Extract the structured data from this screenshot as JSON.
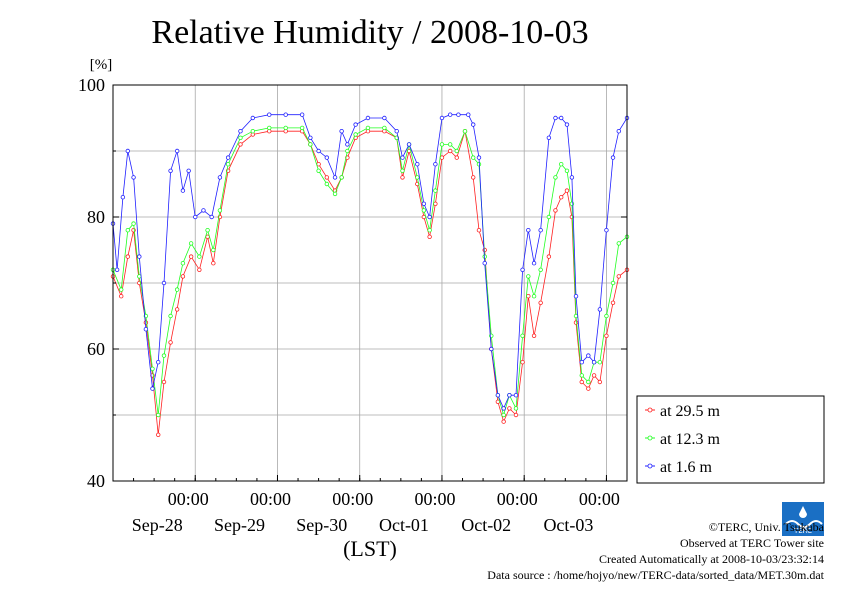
{
  "chart_data": {
    "type": "line",
    "title": "Relative Humidity / 2008-10-03",
    "ylabel": "[%]",
    "xlabel": "(LST)",
    "ylim": [
      40,
      100
    ],
    "yticks": [
      40,
      60,
      80,
      100
    ],
    "xlim": [
      0,
      6.25
    ],
    "xtick_time_label": "00:00",
    "xticks": [
      {
        "pos": 1,
        "label": "Sep-28"
      },
      {
        "pos": 2,
        "label": "Sep-29"
      },
      {
        "pos": 3,
        "label": "Sep-30"
      },
      {
        "pos": 4,
        "label": "Oct-01"
      },
      {
        "pos": 5,
        "label": "Oct-02"
      },
      {
        "pos": 6,
        "label": "Oct-03"
      }
    ],
    "grid": true,
    "legend_position": "bottom-right",
    "series": [
      {
        "name": "at 29.5 m",
        "color": "#ff2020",
        "points": [
          [
            0.0,
            71
          ],
          [
            0.1,
            68
          ],
          [
            0.18,
            74
          ],
          [
            0.25,
            78
          ],
          [
            0.32,
            70
          ],
          [
            0.4,
            64
          ],
          [
            0.48,
            56
          ],
          [
            0.55,
            47
          ],
          [
            0.62,
            55
          ],
          [
            0.7,
            61
          ],
          [
            0.78,
            66
          ],
          [
            0.85,
            71
          ],
          [
            0.95,
            74
          ],
          [
            1.05,
            72
          ],
          [
            1.15,
            77
          ],
          [
            1.22,
            73
          ],
          [
            1.3,
            80
          ],
          [
            1.4,
            87
          ],
          [
            1.55,
            91
          ],
          [
            1.7,
            92.5
          ],
          [
            1.9,
            93
          ],
          [
            2.1,
            93
          ],
          [
            2.3,
            93
          ],
          [
            2.4,
            91
          ],
          [
            2.5,
            88
          ],
          [
            2.6,
            86
          ],
          [
            2.7,
            84
          ],
          [
            2.78,
            86
          ],
          [
            2.85,
            89
          ],
          [
            2.95,
            92
          ],
          [
            3.1,
            93
          ],
          [
            3.3,
            93
          ],
          [
            3.45,
            92
          ],
          [
            3.52,
            86
          ],
          [
            3.6,
            90
          ],
          [
            3.7,
            85
          ],
          [
            3.78,
            80
          ],
          [
            3.85,
            77
          ],
          [
            3.92,
            82
          ],
          [
            4.0,
            89
          ],
          [
            4.1,
            90
          ],
          [
            4.18,
            89
          ],
          [
            4.28,
            93
          ],
          [
            4.38,
            86
          ],
          [
            4.45,
            78
          ],
          [
            4.52,
            75
          ],
          [
            4.6,
            60
          ],
          [
            4.68,
            52
          ],
          [
            4.75,
            49
          ],
          [
            4.82,
            51
          ],
          [
            4.9,
            50
          ],
          [
            4.98,
            58
          ],
          [
            5.05,
            68
          ],
          [
            5.12,
            62
          ],
          [
            5.2,
            67
          ],
          [
            5.3,
            74
          ],
          [
            5.38,
            81
          ],
          [
            5.45,
            83
          ],
          [
            5.52,
            84
          ],
          [
            5.58,
            80
          ],
          [
            5.63,
            64
          ],
          [
            5.7,
            55
          ],
          [
            5.78,
            54
          ],
          [
            5.85,
            56
          ],
          [
            5.92,
            55
          ],
          [
            6.0,
            62
          ],
          [
            6.08,
            67
          ],
          [
            6.15,
            71
          ],
          [
            6.25,
            72
          ]
        ]
      },
      {
        "name": "at 12.3 m",
        "color": "#20ff20",
        "points": [
          [
            0.0,
            72
          ],
          [
            0.1,
            69
          ],
          [
            0.18,
            78
          ],
          [
            0.25,
            79
          ],
          [
            0.32,
            71
          ],
          [
            0.4,
            65
          ],
          [
            0.48,
            57
          ],
          [
            0.55,
            50
          ],
          [
            0.62,
            59
          ],
          [
            0.7,
            65
          ],
          [
            0.78,
            69
          ],
          [
            0.85,
            73
          ],
          [
            0.95,
            76
          ],
          [
            1.05,
            74
          ],
          [
            1.15,
            78
          ],
          [
            1.22,
            75
          ],
          [
            1.3,
            81
          ],
          [
            1.4,
            88
          ],
          [
            1.55,
            92
          ],
          [
            1.7,
            93
          ],
          [
            1.9,
            93.5
          ],
          [
            2.1,
            93.5
          ],
          [
            2.3,
            93.5
          ],
          [
            2.4,
            91
          ],
          [
            2.5,
            87
          ],
          [
            2.6,
            85
          ],
          [
            2.7,
            83.5
          ],
          [
            2.78,
            86
          ],
          [
            2.85,
            90
          ],
          [
            2.95,
            92.5
          ],
          [
            3.1,
            93.5
          ],
          [
            3.3,
            93.5
          ],
          [
            3.45,
            92
          ],
          [
            3.52,
            87
          ],
          [
            3.6,
            91
          ],
          [
            3.7,
            86
          ],
          [
            3.78,
            81
          ],
          [
            3.85,
            78
          ],
          [
            3.92,
            84
          ],
          [
            4.0,
            91
          ],
          [
            4.1,
            91
          ],
          [
            4.18,
            90
          ],
          [
            4.28,
            93
          ],
          [
            4.38,
            89
          ],
          [
            4.45,
            88
          ],
          [
            4.52,
            74
          ],
          [
            4.6,
            62
          ],
          [
            4.68,
            53
          ],
          [
            4.75,
            50
          ],
          [
            4.82,
            53
          ],
          [
            4.9,
            51
          ],
          [
            4.98,
            62
          ],
          [
            5.05,
            71
          ],
          [
            5.12,
            68
          ],
          [
            5.2,
            72
          ],
          [
            5.3,
            80
          ],
          [
            5.38,
            86
          ],
          [
            5.45,
            88
          ],
          [
            5.52,
            87
          ],
          [
            5.58,
            82
          ],
          [
            5.63,
            65
          ],
          [
            5.7,
            56
          ],
          [
            5.78,
            55
          ],
          [
            5.85,
            58
          ],
          [
            5.92,
            58
          ],
          [
            6.0,
            65
          ],
          [
            6.08,
            70
          ],
          [
            6.15,
            76
          ],
          [
            6.25,
            77
          ]
        ]
      },
      {
        "name": "at 1.6 m",
        "color": "#2020ff",
        "points": [
          [
            0.0,
            79
          ],
          [
            0.05,
            72
          ],
          [
            0.12,
            83
          ],
          [
            0.18,
            90
          ],
          [
            0.25,
            86
          ],
          [
            0.32,
            74
          ],
          [
            0.4,
            63
          ],
          [
            0.48,
            54
          ],
          [
            0.55,
            58
          ],
          [
            0.62,
            70
          ],
          [
            0.7,
            87
          ],
          [
            0.78,
            90
          ],
          [
            0.85,
            84
          ],
          [
            0.92,
            87
          ],
          [
            1.0,
            80
          ],
          [
            1.1,
            81
          ],
          [
            1.2,
            80
          ],
          [
            1.3,
            86
          ],
          [
            1.4,
            89
          ],
          [
            1.55,
            93
          ],
          [
            1.7,
            95
          ],
          [
            1.9,
            95.5
          ],
          [
            2.1,
            95.5
          ],
          [
            2.3,
            95.5
          ],
          [
            2.4,
            92
          ],
          [
            2.5,
            90
          ],
          [
            2.6,
            89
          ],
          [
            2.7,
            86
          ],
          [
            2.78,
            93
          ],
          [
            2.85,
            91
          ],
          [
            2.95,
            94
          ],
          [
            3.1,
            95
          ],
          [
            3.3,
            95
          ],
          [
            3.45,
            93
          ],
          [
            3.52,
            89
          ],
          [
            3.6,
            91
          ],
          [
            3.7,
            88
          ],
          [
            3.78,
            82
          ],
          [
            3.85,
            80
          ],
          [
            3.92,
            88
          ],
          [
            4.0,
            95
          ],
          [
            4.1,
            95.5
          ],
          [
            4.2,
            95.5
          ],
          [
            4.32,
            95.5
          ],
          [
            4.38,
            94
          ],
          [
            4.45,
            89
          ],
          [
            4.52,
            73
          ],
          [
            4.6,
            60
          ],
          [
            4.68,
            53
          ],
          [
            4.75,
            51
          ],
          [
            4.82,
            53
          ],
          [
            4.9,
            53
          ],
          [
            4.98,
            72
          ],
          [
            5.05,
            78
          ],
          [
            5.12,
            73
          ],
          [
            5.2,
            78
          ],
          [
            5.3,
            92
          ],
          [
            5.38,
            95
          ],
          [
            5.45,
            95
          ],
          [
            5.52,
            94
          ],
          [
            5.58,
            86
          ],
          [
            5.63,
            68
          ],
          [
            5.7,
            58
          ],
          [
            5.78,
            59
          ],
          [
            5.85,
            58
          ],
          [
            5.92,
            66
          ],
          [
            6.0,
            78
          ],
          [
            6.08,
            89
          ],
          [
            6.15,
            93
          ],
          [
            6.25,
            95
          ]
        ]
      }
    ]
  },
  "credits": {
    "copyright": "©TERC, Univ. Tsukuba",
    "observed": "Observed at TERC Tower site",
    "created": "Created Automatically at 2008-10-03/23:32:14",
    "source": "Data source : /home/hojyo/new/TERC-data/sorted_data/MET.30m.dat"
  },
  "logo_text": "TERC"
}
